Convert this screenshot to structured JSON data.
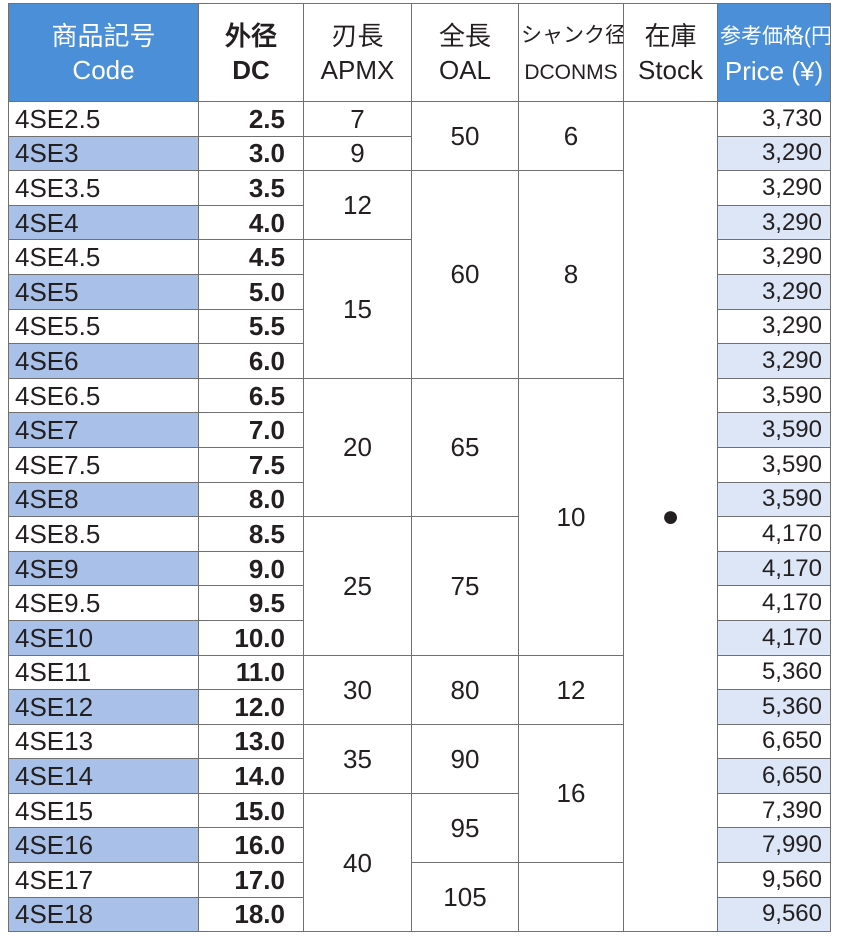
{
  "table": {
    "header": [
      {
        "ja": "商品記号",
        "en": "Code"
      },
      {
        "ja": "外径",
        "en": "DC"
      },
      {
        "ja": "刃長",
        "en": "APMX"
      },
      {
        "ja": "全長",
        "en": "OAL"
      },
      {
        "ja": "シャンク径",
        "en": "DCONMS"
      },
      {
        "ja": "在庫",
        "en": "Stock"
      },
      {
        "ja": "参考価格(円)",
        "en": "Price (¥)"
      }
    ],
    "rows": [
      {
        "code": "4SE2.5",
        "dc": "2.5",
        "price": "3,730"
      },
      {
        "code": "4SE3",
        "dc": "3.0",
        "price": "3,290"
      },
      {
        "code": "4SE3.5",
        "dc": "3.5",
        "price": "3,290"
      },
      {
        "code": "4SE4",
        "dc": "4.0",
        "price": "3,290"
      },
      {
        "code": "4SE4.5",
        "dc": "4.5",
        "price": "3,290"
      },
      {
        "code": "4SE5",
        "dc": "5.0",
        "price": "3,290"
      },
      {
        "code": "4SE5.5",
        "dc": "5.5",
        "price": "3,290"
      },
      {
        "code": "4SE6",
        "dc": "6.0",
        "price": "3,290"
      },
      {
        "code": "4SE6.5",
        "dc": "6.5",
        "price": "3,590"
      },
      {
        "code": "4SE7",
        "dc": "7.0",
        "price": "3,590"
      },
      {
        "code": "4SE7.5",
        "dc": "7.5",
        "price": "3,590"
      },
      {
        "code": "4SE8",
        "dc": "8.0",
        "price": "3,590"
      },
      {
        "code": "4SE8.5",
        "dc": "8.5",
        "price": "4,170"
      },
      {
        "code": "4SE9",
        "dc": "9.0",
        "price": "4,170"
      },
      {
        "code": "4SE9.5",
        "dc": "9.5",
        "price": "4,170"
      },
      {
        "code": "4SE10",
        "dc": "10.0",
        "price": "4,170"
      },
      {
        "code": "4SE11",
        "dc": "11.0",
        "price": "5,360"
      },
      {
        "code": "4SE12",
        "dc": "12.0",
        "price": "5,360"
      },
      {
        "code": "4SE13",
        "dc": "13.0",
        "price": "6,650"
      },
      {
        "code": "4SE14",
        "dc": "14.0",
        "price": "6,650"
      },
      {
        "code": "4SE15",
        "dc": "15.0",
        "price": "7,390"
      },
      {
        "code": "4SE16",
        "dc": "16.0",
        "price": "7,990"
      },
      {
        "code": "4SE17",
        "dc": "17.0",
        "price": "9,560"
      },
      {
        "code": "4SE18",
        "dc": "18.0",
        "price": "9,560"
      }
    ],
    "apmx": [
      {
        "text": "7",
        "span": 1
      },
      {
        "text": "9",
        "span": 1
      },
      {
        "text": "12",
        "span": 2
      },
      {
        "text": "15",
        "span": 4
      },
      {
        "text": "20",
        "span": 4
      },
      {
        "text": "25",
        "span": 4
      },
      {
        "text": "30",
        "span": 2
      },
      {
        "text": "35",
        "span": 2
      },
      {
        "text": "40",
        "span": 4
      }
    ],
    "oal": [
      {
        "text": "50",
        "span": 2
      },
      {
        "text": "60",
        "span": 6
      },
      {
        "text": "65",
        "span": 4
      },
      {
        "text": "75",
        "span": 4
      },
      {
        "text": "80",
        "span": 2
      },
      {
        "text": "90",
        "span": 2
      },
      {
        "text": "95",
        "span": 2
      },
      {
        "text": "105",
        "span": 2
      }
    ],
    "dconms": [
      {
        "text": "6",
        "span": 2
      },
      {
        "text": "8",
        "span": 6
      },
      {
        "text": "10",
        "span": 8
      },
      {
        "text": "12",
        "span": 2
      },
      {
        "text": "16",
        "span": 4
      },
      {
        "span": 2
      }
    ],
    "stock": [
      {
        "text": "●",
        "span": 24
      }
    ]
  }
}
